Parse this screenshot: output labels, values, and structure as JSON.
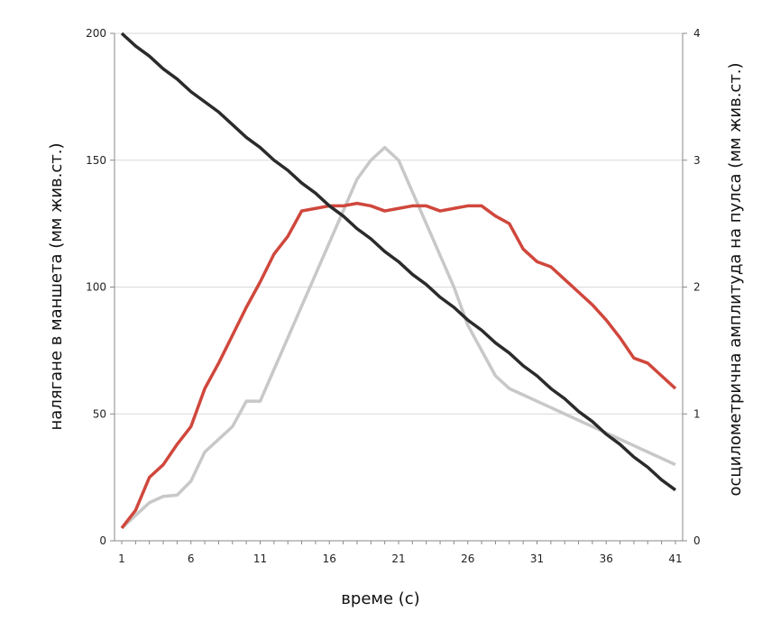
{
  "chart_data": {
    "type": "line",
    "xlabel": "време (с)",
    "ylabel_left": "налягане в маншета (мм жив.ст.)",
    "ylabel_right": "осцилометрична амплитуда на пулса (мм жив.ст.)",
    "x": [
      1,
      2,
      3,
      4,
      5,
      6,
      7,
      8,
      9,
      10,
      11,
      12,
      13,
      14,
      15,
      16,
      17,
      18,
      19,
      20,
      21,
      22,
      23,
      24,
      25,
      26,
      27,
      28,
      29,
      30,
      31,
      32,
      33,
      34,
      35,
      36,
      37,
      38,
      39,
      40,
      41
    ],
    "x_ticks": [
      1,
      6,
      11,
      16,
      21,
      26,
      31,
      36,
      41
    ],
    "ylim_left": [
      0,
      200
    ],
    "yticks_left": [
      0,
      50,
      100,
      150,
      200
    ],
    "ylim_right": [
      0,
      4
    ],
    "yticks_right": [
      0,
      1,
      2,
      3,
      4
    ],
    "grid": true,
    "series": [
      {
        "axis": "left",
        "color": "#2b2b2b",
        "values": [
          200,
          195,
          191,
          186,
          182,
          177,
          173,
          169,
          164,
          159,
          155,
          150,
          146,
          141,
          137,
          132,
          128,
          123,
          119,
          114,
          110,
          105,
          101,
          96,
          92,
          87,
          83,
          78,
          74,
          69,
          65,
          60,
          56,
          51,
          47,
          42,
          38,
          33,
          29,
          24,
          20
        ]
      },
      {
        "axis": "left",
        "color": "#d0473c",
        "values": [
          5,
          12,
          25,
          30,
          38,
          45,
          60,
          70,
          81,
          92,
          102,
          113,
          120,
          130,
          131,
          132,
          132,
          133,
          132,
          130,
          131,
          132,
          132,
          130,
          131,
          132,
          132,
          128,
          125,
          115,
          110,
          108,
          103,
          98,
          93,
          87,
          80,
          72,
          70,
          65,
          60
        ]
      },
      {
        "axis": "right",
        "color": "#c8c8c8",
        "values": [
          0.1,
          0.2,
          0.3,
          0.35,
          0.36,
          0.47,
          0.7,
          0.8,
          0.9,
          1.1,
          1.1,
          1.35,
          1.6,
          1.85,
          2.1,
          2.35,
          2.6,
          2.85,
          3.0,
          3.1,
          3.0,
          2.75,
          2.5,
          2.25,
          2.0,
          1.7,
          1.5,
          1.3,
          1.2,
          1.15,
          1.1,
          1.05,
          1.0,
          0.95,
          0.9,
          0.85,
          0.8,
          0.75,
          0.7,
          0.65,
          0.6
        ]
      }
    ]
  }
}
